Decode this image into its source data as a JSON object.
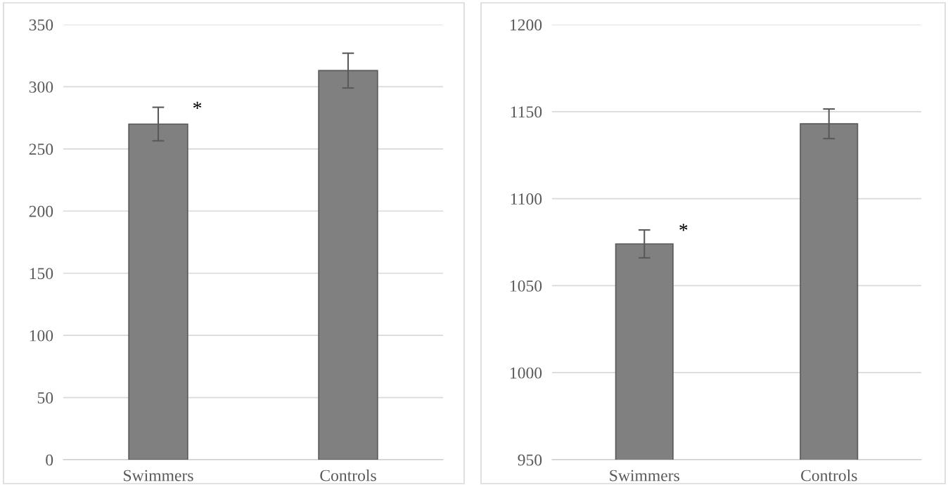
{
  "chart_data": [
    {
      "type": "bar",
      "categories": [
        "Swimmers",
        "Controls"
      ],
      "values": [
        270,
        313
      ],
      "errors": [
        13.5,
        14
      ],
      "color": "#808080",
      "ylim": [
        0,
        350
      ],
      "yticks": [
        0,
        50,
        100,
        150,
        200,
        250,
        300,
        350
      ],
      "grid": "y",
      "annotations": [
        {
          "text": "*",
          "x": "Swimmers",
          "y": 283
        }
      ]
    },
    {
      "type": "bar",
      "categories": [
        "Swimmers",
        "Controls"
      ],
      "values": [
        1074,
        1143
      ],
      "errors": [
        8,
        8.5
      ],
      "color": "#808080",
      "ylim": [
        950,
        1200
      ],
      "yticks": [
        950,
        1000,
        1050,
        1100,
        1150,
        1200
      ],
      "grid": "y",
      "annotations": [
        {
          "text": "*",
          "x": "Swimmers",
          "y": 1082
        }
      ]
    }
  ]
}
